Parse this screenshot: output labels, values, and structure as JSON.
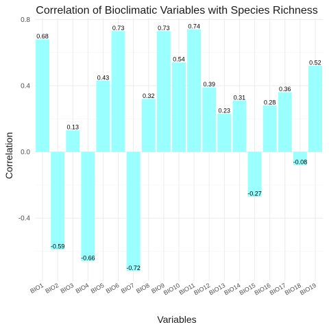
{
  "chart_data": {
    "type": "bar",
    "title": "Correlation of Bioclimatic Variables with Species Richness",
    "xlabel": "Variables",
    "ylabel": "Correlation",
    "categories": [
      "BIO1",
      "BIO2",
      "BIO3",
      "BIO4",
      "BIO5",
      "BIO6",
      "BIO7",
      "BIO8",
      "BIO9",
      "BIO10",
      "BIO11",
      "BIO12",
      "BIO13",
      "BIO14",
      "BIO15",
      "BIO16",
      "BIO17",
      "BIO18",
      "BIO19"
    ],
    "values": [
      0.68,
      -0.59,
      0.13,
      -0.66,
      0.43,
      0.73,
      -0.72,
      0.32,
      0.73,
      0.54,
      0.74,
      0.39,
      0.23,
      0.31,
      -0.27,
      0.28,
      0.36,
      -0.08,
      0.52
    ],
    "value_labels": [
      "0.68",
      "-0.59",
      "0.13",
      "-0.66",
      "0.43",
      "0.73",
      "-0.72",
      "0.32",
      "0.73",
      "0.54",
      "0.74",
      "0.39",
      "0.23",
      "0.31",
      "-0.27",
      "0.28",
      "0.36",
      "-0.08",
      "0.52"
    ],
    "yticks": [
      -0.4,
      0.0,
      0.4,
      0.8
    ],
    "ytick_labels": [
      "-0.4",
      "0.0",
      "0.4",
      "0.8"
    ],
    "ylim": [
      -0.72,
      0.8
    ],
    "grid": true,
    "legend": "none",
    "bar_color": "#99FFFF"
  }
}
